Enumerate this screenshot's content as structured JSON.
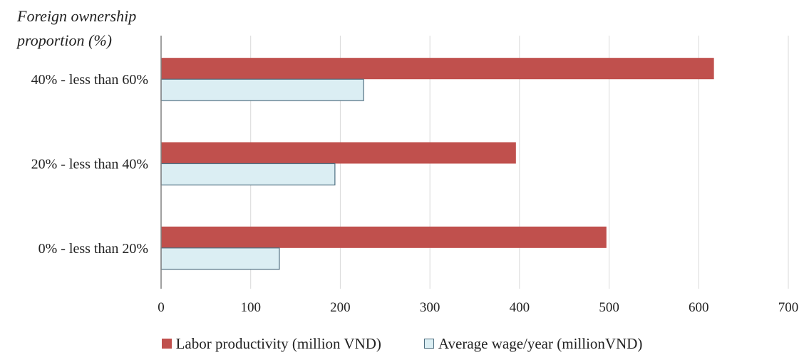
{
  "chart_data": {
    "type": "bar",
    "orientation": "horizontal",
    "ylabel": [
      "Foreign ownership",
      "proportion (%)"
    ],
    "categories": [
      "0% - less than 20%",
      "20% - less than 40%",
      "40% - less than 60%"
    ],
    "series": [
      {
        "name": "Labor productivity (million VND)",
        "values": [
          497,
          396,
          617
        ],
        "color": "#c0504d"
      },
      {
        "name": "Average wage/year (millionVND)",
        "values": [
          132,
          194,
          226
        ],
        "color": "#dbeef3",
        "stroke": "#4f6f80"
      }
    ],
    "xlim": [
      0,
      700
    ],
    "xticks": [
      0,
      100,
      200,
      300,
      400,
      500,
      600,
      700
    ],
    "grid": "vertical",
    "legend": "bottom"
  }
}
